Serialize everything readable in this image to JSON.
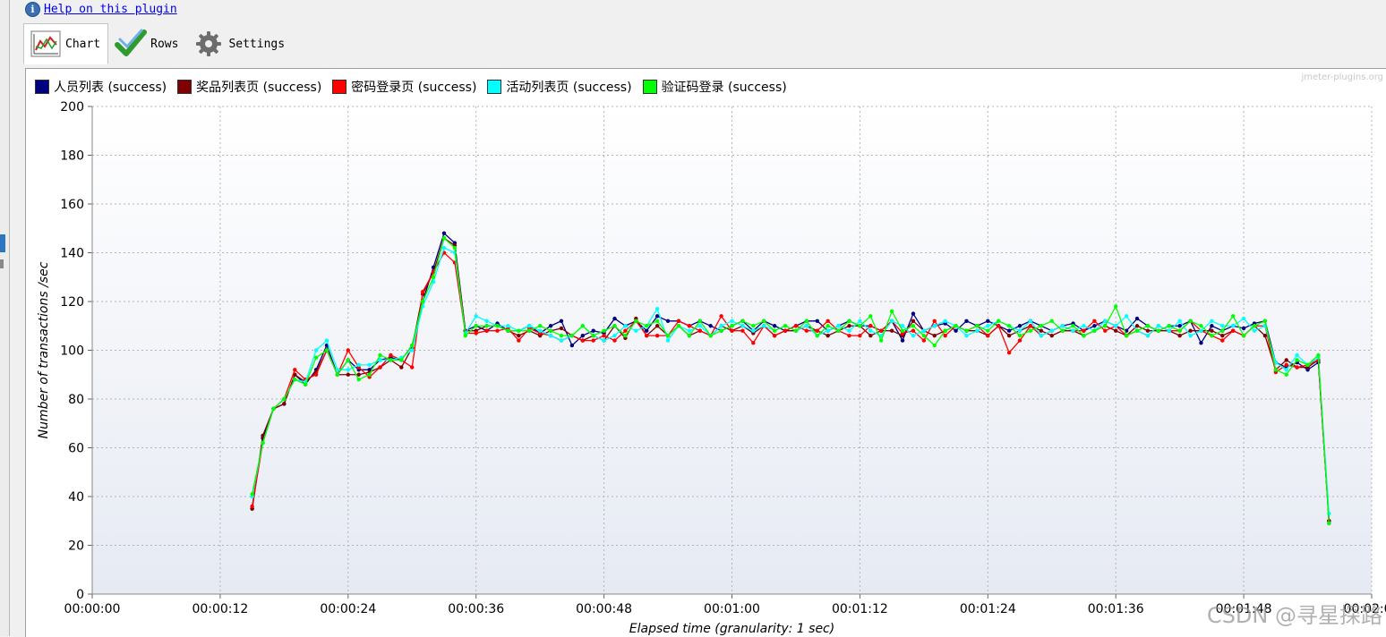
{
  "help_link": "Help on this plugin",
  "tabs": [
    {
      "label": "Chart",
      "icon": "chart-icon",
      "active": true
    },
    {
      "label": "Rows",
      "icon": "checkmark-icon",
      "active": false
    },
    {
      "label": "Settings",
      "icon": "gear-icon",
      "active": false
    }
  ],
  "watermark_top": "jmeter-plugins.org",
  "watermark_csdn": "CSDN @寻星探路",
  "legend": [
    {
      "label": "人员列表 (success)",
      "color": "#00007f"
    },
    {
      "label": "奖品列表页 (success)",
      "color": "#7f0000"
    },
    {
      "label": "密码登录页 (success)",
      "color": "#ff0000"
    },
    {
      "label": "活动列表页 (success)",
      "color": "#00ffff"
    },
    {
      "label": "验证码登录 (success)",
      "color": "#00ff00"
    }
  ],
  "chart_data": {
    "type": "line",
    "xlabel": "Elapsed time (granularity: 1 sec)",
    "ylabel": "Number of transactions /sec",
    "ylim": [
      0,
      200
    ],
    "yticks": [
      0,
      20,
      40,
      60,
      80,
      100,
      120,
      140,
      160,
      180,
      200
    ],
    "xlim": [
      0,
      120
    ],
    "xticks": [
      "00:00:00",
      "00:00:12",
      "00:00:24",
      "00:00:36",
      "00:00:48",
      "00:01:00",
      "00:01:12",
      "00:01:24",
      "00:01:36",
      "00:01:48",
      "00:02:00"
    ],
    "x_unit": "seconds",
    "x_start": 15,
    "grid": true,
    "legend_position": "top-left",
    "series": [
      {
        "name": "人员列表 (success)",
        "color": "#00007f",
        "values": [
          35,
          64,
          76,
          78,
          90,
          86,
          92,
          102,
          90,
          96,
          92,
          92,
          96,
          97,
          96,
          102,
          120,
          134,
          148,
          144,
          108,
          110,
          108,
          111,
          108,
          108,
          110,
          107,
          110,
          112,
          102,
          106,
          108,
          107,
          113,
          110,
          112,
          108,
          114,
          112,
          112,
          110,
          112,
          110,
          108,
          110,
          112,
          108,
          112,
          110,
          108,
          110,
          112,
          112,
          108,
          110,
          112,
          110,
          110,
          108,
          112,
          104,
          115,
          108,
          110,
          111,
          108,
          112,
          110,
          112,
          110,
          108,
          110,
          112,
          110,
          108,
          110,
          111,
          108,
          110,
          112,
          110,
          108,
          113,
          110,
          108,
          110,
          110,
          112,
          103,
          110,
          108,
          110,
          109,
          111,
          112,
          95,
          93,
          95,
          92,
          95,
          30
        ]
      },
      {
        "name": "奖品列表页 (success)",
        "color": "#7f0000",
        "values": [
          35,
          65,
          76,
          78,
          90,
          87,
          91,
          100,
          90,
          90,
          90,
          91,
          93,
          96,
          93,
          101,
          123,
          132,
          146,
          143,
          108,
          108,
          110,
          110,
          108,
          106,
          108,
          106,
          108,
          109,
          106,
          104,
          106,
          104,
          110,
          105,
          113,
          106,
          110,
          106,
          110,
          106,
          108,
          106,
          110,
          108,
          110,
          107,
          110,
          106,
          108,
          108,
          110,
          108,
          106,
          108,
          110,
          110,
          106,
          108,
          108,
          106,
          112,
          108,
          106,
          108,
          110,
          108,
          108,
          106,
          110,
          106,
          108,
          110,
          108,
          106,
          108,
          108,
          106,
          108,
          110,
          108,
          106,
          110,
          108,
          108,
          108,
          106,
          108,
          108,
          108,
          106,
          108,
          106,
          110,
          106,
          92,
          96,
          93,
          93,
          96,
          30
        ]
      },
      {
        "name": "密码登录页 (success)",
        "color": "#ff0000",
        "values": [
          36,
          62,
          76,
          80,
          92,
          88,
          90,
          100,
          90,
          100,
          93,
          89,
          93,
          98,
          96,
          93,
          124,
          132,
          140,
          136,
          107,
          107,
          108,
          108,
          109,
          104,
          109,
          107,
          106,
          104,
          106,
          104,
          104,
          106,
          104,
          108,
          112,
          106,
          106,
          106,
          112,
          110,
          108,
          106,
          114,
          108,
          108,
          103,
          110,
          106,
          108,
          110,
          108,
          108,
          112,
          108,
          106,
          106,
          110,
          108,
          112,
          107,
          108,
          104,
          112,
          106,
          110,
          108,
          110,
          106,
          110,
          99,
          104,
          110,
          106,
          108,
          110,
          108,
          108,
          112,
          108,
          110,
          106,
          108,
          106,
          110,
          108,
          108,
          112,
          108,
          106,
          104,
          108,
          106,
          110,
          110,
          91,
          94,
          93,
          94,
          96,
          29
        ]
      },
      {
        "name": "活动列表页 (success)",
        "color": "#00ffff",
        "values": [
          40,
          62,
          76,
          80,
          88,
          87,
          100,
          104,
          92,
          92,
          94,
          94,
          96,
          96,
          97,
          100,
          118,
          128,
          142,
          140,
          107,
          114,
          112,
          110,
          110,
          108,
          110,
          108,
          106,
          104,
          106,
          110,
          106,
          104,
          106,
          110,
          108,
          110,
          117,
          104,
          110,
          108,
          110,
          106,
          110,
          112,
          110,
          108,
          110,
          108,
          110,
          108,
          110,
          106,
          108,
          110,
          108,
          112,
          108,
          106,
          112,
          110,
          106,
          108,
          110,
          112,
          110,
          106,
          108,
          110,
          112,
          110,
          108,
          112,
          106,
          108,
          110,
          108,
          110,
          108,
          112,
          110,
          114,
          108,
          106,
          110,
          108,
          112,
          106,
          108,
          112,
          110,
          110,
          113,
          108,
          110,
          95,
          92,
          98,
          94,
          97,
          33
        ]
      },
      {
        "name": "验证码登录 (success)",
        "color": "#00ff00",
        "values": [
          41,
          62,
          76,
          80,
          88,
          86,
          97,
          100,
          90,
          96,
          88,
          90,
          98,
          96,
          96,
          102,
          120,
          130,
          146,
          142,
          106,
          110,
          110,
          110,
          108,
          108,
          108,
          110,
          108,
          106,
          106,
          110,
          106,
          108,
          110,
          106,
          112,
          110,
          112,
          106,
          110,
          106,
          112,
          106,
          108,
          110,
          112,
          110,
          112,
          108,
          110,
          108,
          112,
          106,
          110,
          108,
          112,
          110,
          114,
          104,
          116,
          108,
          110,
          106,
          102,
          108,
          110,
          108,
          110,
          108,
          112,
          110,
          106,
          108,
          110,
          112,
          108,
          110,
          106,
          108,
          110,
          118,
          106,
          108,
          110,
          108,
          110,
          108,
          112,
          110,
          106,
          108,
          114,
          106,
          110,
          112,
          92,
          90,
          96,
          94,
          98,
          29
        ]
      }
    ]
  }
}
